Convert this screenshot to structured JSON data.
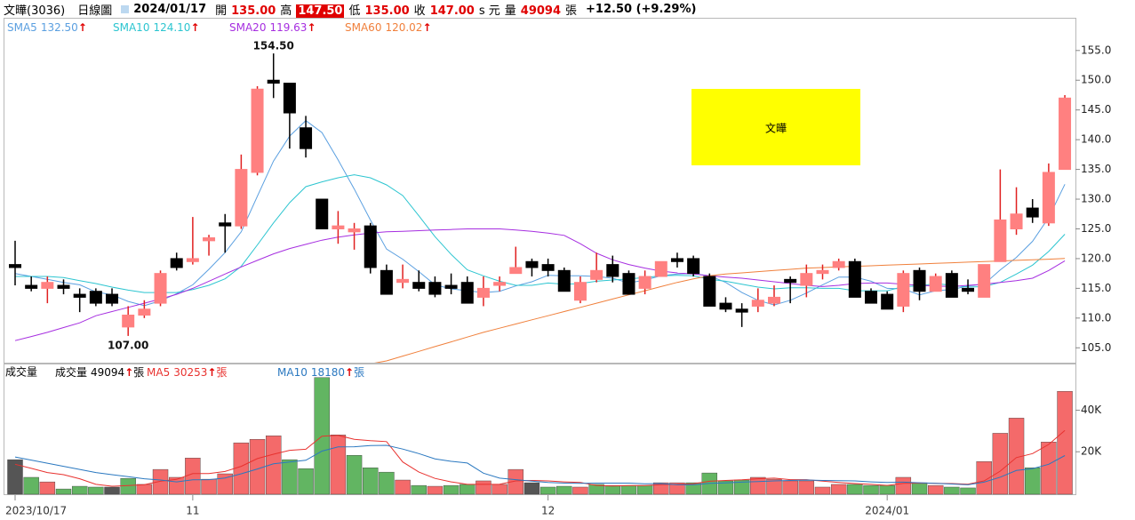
{
  "header": {
    "name": "文曄(3036)",
    "period": "日線圖",
    "date": "2024/01/17",
    "fields": [
      {
        "label": "開",
        "value": "135.00"
      },
      {
        "label": "高",
        "value": "147.50",
        "highlight": true
      },
      {
        "label": "低",
        "value": "135.00"
      },
      {
        "label": "收",
        "value": "147.00",
        "suffix": "s 元"
      },
      {
        "label": "量",
        "value": "49094",
        "suffix": "張"
      }
    ],
    "change": "+12.50 (+9.29%)"
  },
  "chart_data": [
    {
      "type": "candlestick",
      "label_box": "文曄",
      "label_box_color": "#ffff00",
      "categories": [
        "2023/10/17",
        null,
        null,
        null,
        null,
        null,
        null,
        null,
        null,
        null,
        null,
        "11",
        null,
        null,
        null,
        null,
        null,
        null,
        null,
        null,
        null,
        null,
        null,
        null,
        null,
        null,
        null,
        null,
        null,
        null,
        null,
        null,
        null,
        "12",
        null,
        null,
        null,
        null,
        null,
        null,
        null,
        null,
        null,
        null,
        null,
        null,
        null,
        null,
        null,
        null,
        null,
        null,
        null,
        null,
        "2024/01",
        null,
        null,
        null,
        null,
        null,
        null,
        null,
        null,
        null,
        null,
        null
      ],
      "open": [
        119,
        115.5,
        115,
        115.5,
        114,
        114.5,
        114,
        108.5,
        110.5,
        112.5,
        120,
        119.5,
        123,
        126,
        125.5,
        134.5,
        150,
        149.5,
        142,
        130,
        125,
        124.5,
        125.5,
        118,
        116,
        116,
        116,
        115.5,
        116,
        113.5,
        115.5,
        117.5,
        119.5,
        119,
        118,
        113,
        116.5,
        119,
        117.5,
        115,
        117,
        120,
        120,
        117,
        112.5,
        111.5,
        112,
        112.5,
        116.5,
        115.5,
        117.5,
        118.5,
        119.5,
        114.5,
        114,
        112,
        118,
        114.5,
        117.5,
        115,
        113.5,
        119.5,
        125,
        128.5,
        126,
        135
      ],
      "high": [
        123,
        117,
        117,
        116.5,
        115,
        115,
        115,
        112,
        113,
        118,
        121,
        127,
        124,
        127.5,
        137.5,
        149,
        154.5,
        149.5,
        144,
        130,
        128,
        126,
        126,
        119,
        119,
        118,
        117,
        117.5,
        117,
        117,
        117,
        122,
        120,
        120,
        118.5,
        117,
        121,
        120.5,
        118,
        118,
        119.5,
        121,
        120.5,
        117.5,
        113.5,
        112.5,
        115,
        115.5,
        117,
        119,
        119,
        120,
        120,
        115,
        114.5,
        118,
        118.5,
        117.5,
        118,
        116.5,
        119,
        135,
        132,
        130,
        136,
        147.5
      ],
      "low": [
        115.5,
        114.5,
        112.5,
        114,
        111,
        112,
        112,
        107,
        110,
        112,
        118,
        119,
        120.5,
        121,
        125,
        134,
        147,
        138.5,
        137,
        125,
        122.5,
        121.5,
        117.5,
        114,
        115,
        114.5,
        113.5,
        114,
        112.5,
        112,
        114.5,
        117.5,
        117,
        117,
        114.5,
        112.5,
        116,
        116,
        114,
        114,
        117,
        118.5,
        117,
        112,
        111,
        108.5,
        111,
        112,
        112.5,
        113.5,
        116.5,
        118,
        113.5,
        112.5,
        111.5,
        111,
        113,
        114.5,
        113.5,
        114,
        113.5,
        119.5,
        124,
        126,
        125.5,
        135
      ],
      "close": [
        118.5,
        115,
        116,
        115,
        113.5,
        112.5,
        112.5,
        110.5,
        111.5,
        117.5,
        118.5,
        120,
        123.5,
        125.5,
        135,
        148.5,
        149.5,
        144.5,
        138.5,
        125,
        125.5,
        125,
        118.5,
        114,
        116.5,
        115,
        114,
        115,
        112.5,
        115,
        116,
        118.5,
        118.5,
        118,
        114.5,
        116,
        118,
        117,
        114,
        117,
        119.5,
        119.5,
        117.5,
        112,
        111.5,
        111,
        113,
        113.5,
        116,
        117.5,
        118,
        119.5,
        113.5,
        112.5,
        111.5,
        117.5,
        114.5,
        117,
        113.5,
        114.5,
        119,
        126.5,
        127.5,
        127,
        134.5,
        147
      ],
      "up_color": "#ff8080",
      "up_line_color": "#e02020",
      "down_color": "#000000",
      "trend_color": "#e00000",
      "ylim": [
        102.5,
        160.5
      ],
      "yticks": [
        {
          "value": 105,
          "label": "105.0"
        },
        {
          "value": 110,
          "label": "110.0"
        },
        {
          "value": 115,
          "label": "115.0"
        },
        {
          "value": 120,
          "label": "120.0"
        },
        {
          "value": 125,
          "label": "125.0"
        },
        {
          "value": 130,
          "label": "130.0"
        },
        {
          "value": 135,
          "label": "135.0"
        },
        {
          "value": 140,
          "label": "140.0"
        },
        {
          "value": 145,
          "label": "145.0"
        },
        {
          "value": 150,
          "label": "150.0"
        },
        {
          "value": 155,
          "label": "155.0"
        }
      ],
      "annotations": [
        {
          "value": 154.5,
          "label": "154.50",
          "at": "high"
        },
        {
          "value": 107,
          "label": "107.00",
          "at": "low"
        }
      ],
      "series": [
        {
          "name": "SMA5",
          "color": "#5a9fe0",
          "legend_value": "132.50",
          "trend": "↑",
          "values": [
            117.5,
            117,
            116.5,
            116,
            115.6,
            114.4,
            113.9,
            112.8,
            112.1,
            112.9,
            114.1,
            115.6,
            118.2,
            121,
            124.5,
            130.5,
            136.4,
            140.6,
            143.2,
            141.2,
            136.6,
            131.7,
            126.5,
            121.6,
            119.9,
            117.8,
            115.6,
            114.9,
            114.6,
            114.3,
            114.5,
            115.4,
            116.1,
            117.2,
            117.1,
            117.1,
            117,
            116.7,
            115.9,
            116.4,
            117.1,
            117.4,
            117.5,
            117.1,
            116,
            114.3,
            113,
            112.2,
            113,
            114.2,
            115.6,
            116.9,
            116.9,
            116.2,
            115,
            114.9,
            113.9,
            114.6,
            114.8,
            115.4,
            115.7,
            118.1,
            120.2,
            122.9,
            126.9,
            132.5
          ]
        },
        {
          "name": "SMA10",
          "color": "#2cc5d0",
          "legend_value": "124.10",
          "trend": "↑",
          "values": [
            117,
            117,
            117,
            116.8,
            116.3,
            115.8,
            115.2,
            114.7,
            114.3,
            114.3,
            114.3,
            114.8,
            115.5,
            116.6,
            118.7,
            122.3,
            126,
            129.4,
            132.1,
            132.9,
            133.6,
            134.1,
            133.6,
            132.4,
            130.6,
            127.2,
            123.7,
            120.7,
            118.1,
            117.1,
            116.2,
            115.5,
            115.5,
            115.9,
            115.7,
            115.8,
            116.2,
            116.4,
            116.6,
            116.8,
            117.1,
            117.2,
            117.1,
            116.5,
            116.2,
            115.7,
            115.2,
            114.9,
            115.1,
            115.1,
            115,
            115,
            114.6,
            114.6,
            114.6,
            115.3,
            115.4,
            115.8,
            115.5,
            115.2,
            115.3,
            116,
            117.4,
            118.9,
            121.2,
            124.1
          ]
        },
        {
          "name": "SMA20",
          "color": "#a62ee0",
          "legend_value": "119.63",
          "trend": "↑",
          "values": [
            106.2,
            106.9,
            107.6,
            108.4,
            109.2,
            110.4,
            111.1,
            111.8,
            112.5,
            113.2,
            114,
            115,
            116.2,
            117.4,
            118.6,
            119.7,
            120.8,
            121.7,
            122.4,
            123.1,
            123.6,
            124,
            124.3,
            124.5,
            124.6,
            124.7,
            124.8,
            124.9,
            125,
            125,
            125,
            124.8,
            124.6,
            124.3,
            123.9,
            122.5,
            120.9,
            119.8,
            119,
            118.4,
            117.9,
            117.6,
            117.4,
            117.1,
            116.9,
            116.7,
            116.4,
            116.1,
            115.8,
            115.5,
            115.3,
            115.5,
            115.8,
            115.9,
            115.9,
            115.7,
            115.5,
            115.4,
            115.3,
            115.5,
            115.7,
            116,
            116.3,
            116.7,
            118,
            119.63
          ]
        },
        {
          "name": "SMA60",
          "color": "#f0803c",
          "legend_value": "120.02",
          "trend": "↑",
          "values": [
            null,
            null,
            null,
            null,
            null,
            null,
            null,
            null,
            null,
            null,
            null,
            null,
            null,
            null,
            null,
            null,
            null,
            null,
            null,
            null,
            null,
            null,
            102.3,
            102.8,
            103.6,
            104.4,
            105.2,
            106,
            106.8,
            107.6,
            108.3,
            109,
            109.7,
            110.4,
            111.1,
            111.8,
            112.5,
            113.2,
            113.9,
            114.6,
            115.3,
            116,
            116.6,
            117.1,
            117.4,
            117.6,
            117.8,
            118,
            118.2,
            118.4,
            118.5,
            118.6,
            118.7,
            118.8,
            118.9,
            119,
            119.1,
            119.2,
            119.3,
            119.4,
            119.5,
            119.6,
            119.7,
            119.8,
            119.9,
            120.02
          ]
        }
      ]
    },
    {
      "type": "bar",
      "title": "成交量",
      "unit": "張",
      "trend_color": "#e00000",
      "ylim": [
        0,
        62000
      ],
      "yticks": [
        {
          "value": 20000,
          "label": "20K"
        },
        {
          "value": 40000,
          "label": "40K"
        }
      ],
      "series": [
        {
          "name": "成交量",
          "type": "bar",
          "color": "#000000",
          "legend_value": "49094",
          "trend": "↑",
          "values": [
            16200,
            7700,
            5500,
            2100,
            3400,
            3000,
            3000,
            7200,
            4300,
            11500,
            7700,
            17000,
            6800,
            9400,
            24300,
            26000,
            27700,
            16200,
            11900,
            55700,
            28100,
            18300,
            12300,
            10200,
            6400,
            3800,
            3400,
            3800,
            4300,
            6000,
            4300,
            11500,
            5100,
            3000,
            3400,
            3000,
            4300,
            3800,
            3800,
            3800,
            5100,
            5100,
            5100,
            9800,
            6000,
            6400,
            7700,
            6800,
            6000,
            6000,
            3000,
            4300,
            4300,
            3800,
            3800,
            7700,
            5100,
            3800,
            3000,
            2600,
            15300,
            28900,
            36200,
            12300,
            24700,
            49094
          ],
          "colors": [
            "#555555",
            "#62b562",
            "#f46a6a",
            "#62b562",
            "#62b562",
            "#62b562",
            "#555555",
            "#62b562",
            "#f46a6a",
            "#f46a6a",
            "#f46a6a",
            "#f46a6a",
            "#f46a6a",
            "#f46a6a",
            "#f46a6a",
            "#f46a6a",
            "#f46a6a",
            "#62b562",
            "#62b562",
            "#62b562",
            "#f46a6a",
            "#62b562",
            "#62b562",
            "#62b562",
            "#f46a6a",
            "#62b562",
            "#f46a6a",
            "#62b562",
            "#62b562",
            "#f46a6a",
            "#f46a6a",
            "#f46a6a",
            "#555555",
            "#62b562",
            "#62b562",
            "#f46a6a",
            "#62b562",
            "#62b562",
            "#62b562",
            "#62b562",
            "#f46a6a",
            "#f46a6a",
            "#62b562",
            "#62b562",
            "#62b562",
            "#62b562",
            "#f46a6a",
            "#f46a6a",
            "#f46a6a",
            "#f46a6a",
            "#f46a6a",
            "#f46a6a",
            "#62b562",
            "#62b562",
            "#62b562",
            "#f46a6a",
            "#62b562",
            "#f46a6a",
            "#62b562",
            "#62b562",
            "#f46a6a",
            "#f46a6a",
            "#f46a6a",
            "#62b562",
            "#f46a6a",
            "#f46a6a"
          ]
        },
        {
          "name": "MA5",
          "type": "line",
          "color": "#e8322f",
          "legend_value": "30253",
          "trend": "↑",
          "values": [
            14000,
            12000,
            10000,
            9000,
            7000,
            4300,
            3400,
            3700,
            4200,
            5800,
            6700,
            9500,
            9500,
            10500,
            13000,
            16700,
            18800,
            20700,
            21200,
            27500,
            27900,
            26000,
            25300,
            24900,
            15100,
            10200,
            7200,
            5500,
            4300,
            4300,
            4400,
            6000,
            6200,
            6000,
            5500,
            5200,
            3800,
            3500,
            3700,
            3700,
            4200,
            4300,
            4600,
            5800,
            6200,
            6500,
            7000,
            7300,
            6600,
            6600,
            5900,
            5200,
            4700,
            4300,
            3800,
            4800,
            4900,
            4800,
            4700,
            4400,
            6000,
            10700,
            17200,
            19100,
            23500,
            30253
          ]
        },
        {
          "name": "MA10",
          "type": "line",
          "color": "#2a78c0",
          "legend_value": "18180",
          "trend": "↑",
          "values": [
            17500,
            16000,
            14500,
            13000,
            11500,
            10000,
            9000,
            8000,
            7000,
            6400,
            5500,
            6500,
            6600,
            7400,
            9400,
            11700,
            14200,
            15100,
            15900,
            20300,
            22300,
            22400,
            23000,
            23100,
            21300,
            19100,
            16600,
            15400,
            14600,
            9700,
            7300,
            6600,
            5900,
            5200,
            4900,
            4800,
            4900,
            4900,
            4900,
            4600,
            4700,
            4100,
            4100,
            4800,
            5000,
            5400,
            5700,
            6000,
            6200,
            6400,
            6200,
            6100,
            6000,
            5500,
            5200,
            5400,
            5100,
            4800,
            4500,
            4100,
            5400,
            7800,
            11000,
            11900,
            14000,
            18180
          ]
        }
      ]
    }
  ]
}
